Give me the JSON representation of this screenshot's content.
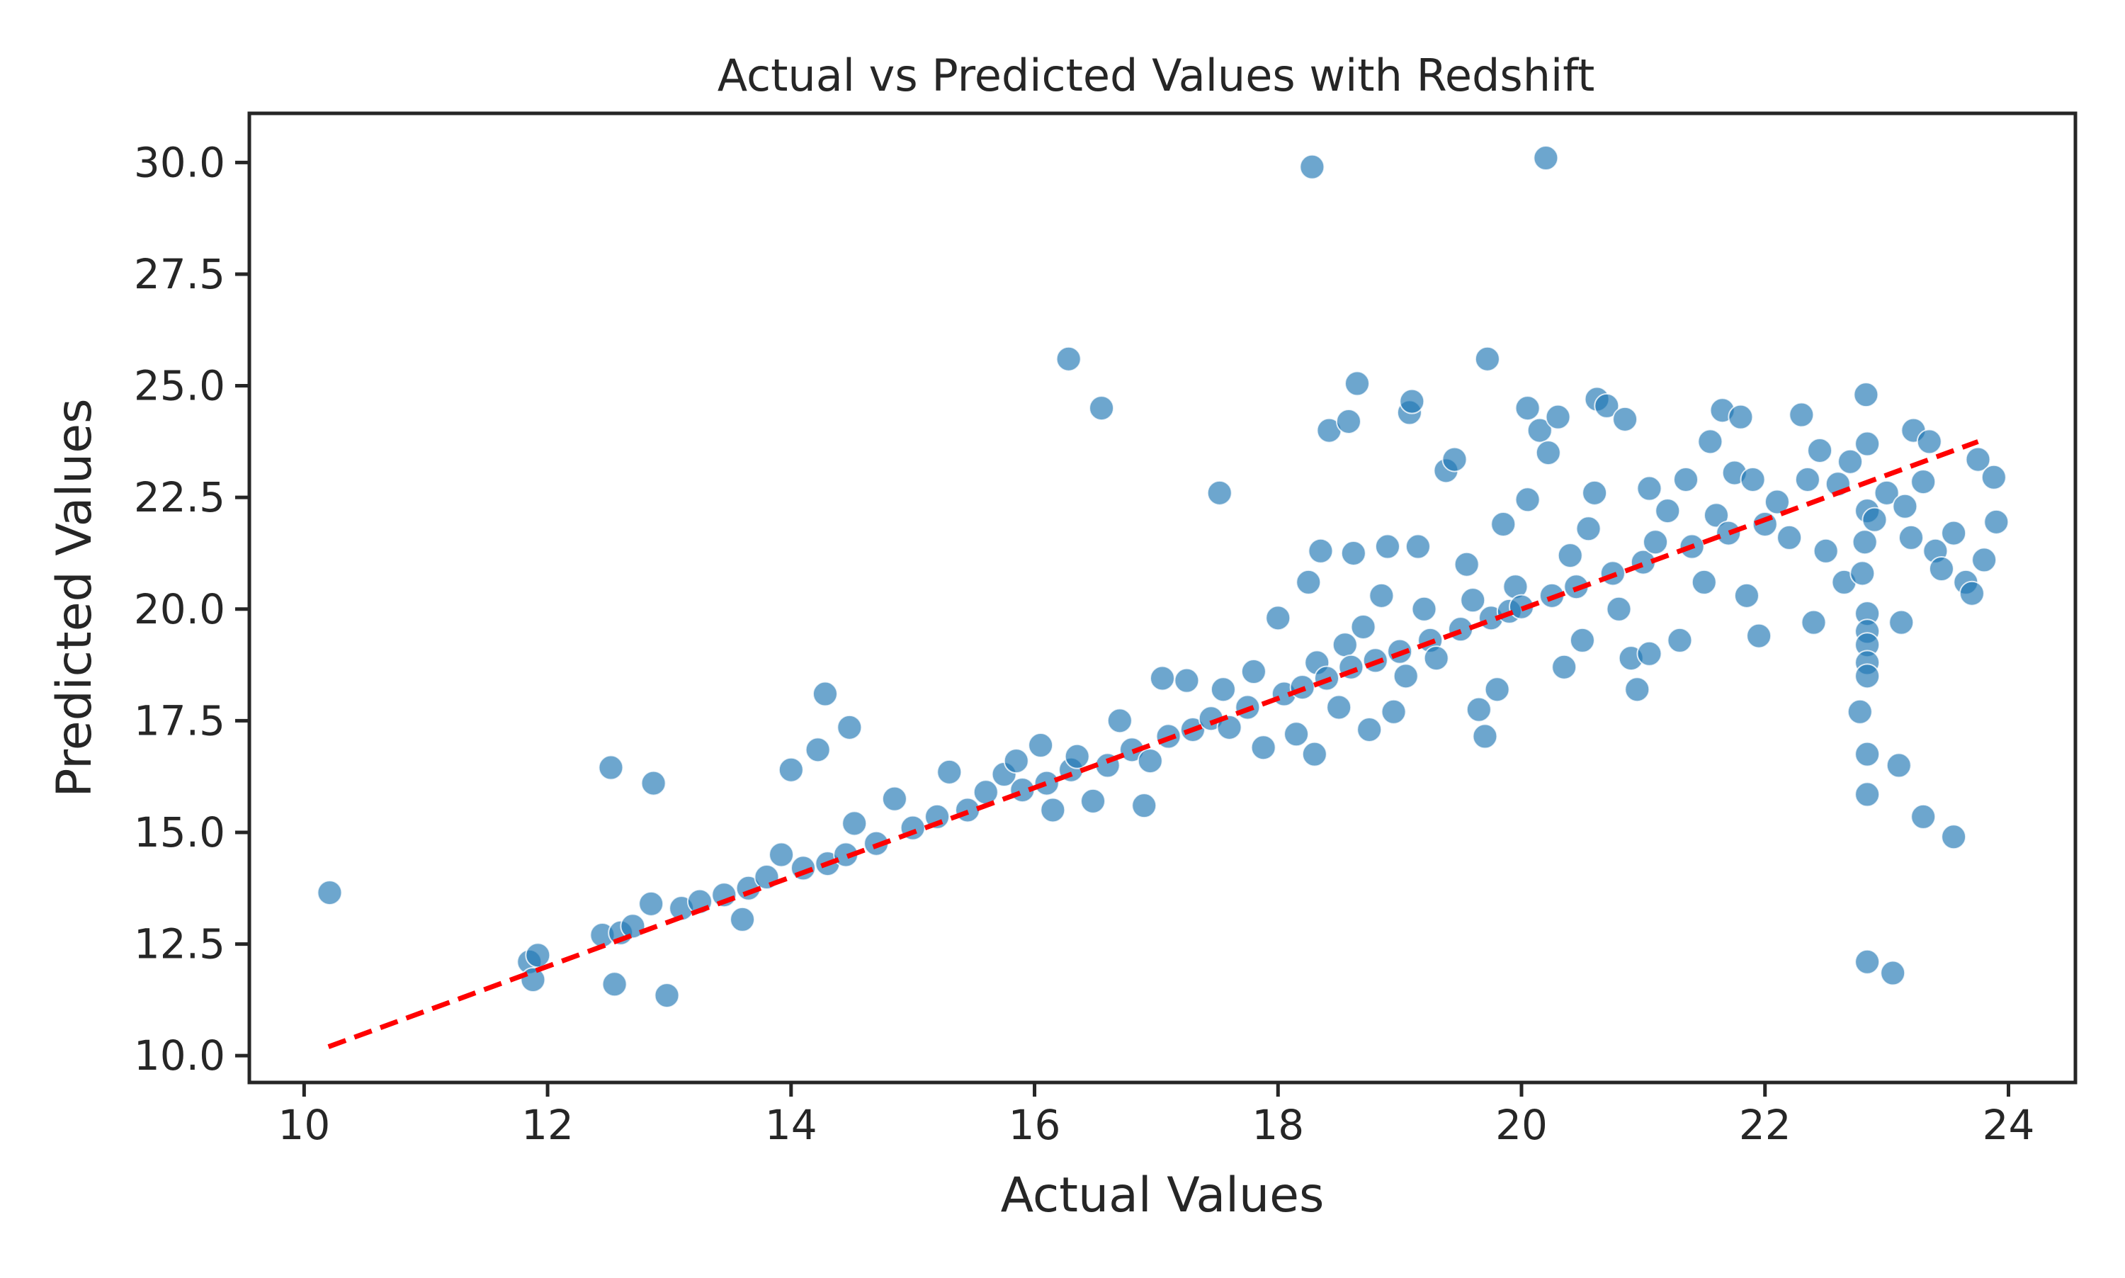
{
  "chart_data": {
    "type": "scatter",
    "title": "Actual vs Predicted Values with Redshift",
    "xlabel": "Actual Values",
    "ylabel": "Predicted Values",
    "xlim": [
      9.55,
      24.55
    ],
    "ylim": [
      9.4,
      31.1
    ],
    "xticks": [
      10,
      12,
      14,
      16,
      18,
      20,
      22,
      24
    ],
    "xtick_labels": [
      "10",
      "12",
      "14",
      "16",
      "18",
      "20",
      "22",
      "24"
    ],
    "yticks": [
      10.0,
      12.5,
      15.0,
      17.5,
      20.0,
      22.5,
      25.0,
      27.5,
      30.0
    ],
    "ytick_labels": [
      "10.0",
      "12.5",
      "15.0",
      "17.5",
      "20.0",
      "22.5",
      "25.0",
      "27.5",
      "30.0"
    ],
    "grid": false,
    "colors": {
      "points": "#1f77b4",
      "point_edge": "#ffffff",
      "reference_line": "#ff0000",
      "axes": "#262626"
    },
    "reference_line": {
      "style": "dashed",
      "x": [
        10.2,
        23.75
      ],
      "y": [
        10.2,
        23.75
      ]
    },
    "series": [
      {
        "points": [
          [
            10.21,
            13.65
          ],
          [
            11.85,
            12.1
          ],
          [
            11.88,
            11.7
          ],
          [
            11.92,
            12.25
          ],
          [
            12.45,
            12.7
          ],
          [
            12.52,
            16.45
          ],
          [
            12.55,
            11.6
          ],
          [
            12.6,
            12.75
          ],
          [
            12.7,
            12.9
          ],
          [
            12.85,
            13.4
          ],
          [
            12.87,
            16.1
          ],
          [
            12.98,
            11.35
          ],
          [
            13.1,
            13.3
          ],
          [
            13.25,
            13.45
          ],
          [
            13.45,
            13.6
          ],
          [
            13.6,
            13.05
          ],
          [
            13.65,
            13.75
          ],
          [
            13.8,
            14.0
          ],
          [
            13.92,
            14.5
          ],
          [
            14.0,
            16.4
          ],
          [
            14.1,
            14.2
          ],
          [
            14.22,
            16.85
          ],
          [
            14.28,
            18.1
          ],
          [
            14.3,
            14.3
          ],
          [
            14.45,
            14.5
          ],
          [
            14.48,
            17.35
          ],
          [
            14.52,
            15.2
          ],
          [
            14.7,
            14.75
          ],
          [
            14.85,
            15.75
          ],
          [
            15.0,
            15.1
          ],
          [
            15.2,
            15.35
          ],
          [
            15.3,
            16.35
          ],
          [
            15.45,
            15.5
          ],
          [
            15.6,
            15.9
          ],
          [
            15.75,
            16.3
          ],
          [
            15.85,
            16.6
          ],
          [
            15.9,
            15.95
          ],
          [
            16.05,
            16.95
          ],
          [
            16.1,
            16.1
          ],
          [
            16.15,
            15.5
          ],
          [
            16.28,
            25.6
          ],
          [
            16.3,
            16.4
          ],
          [
            16.35,
            16.7
          ],
          [
            16.48,
            15.7
          ],
          [
            16.55,
            24.5
          ],
          [
            16.6,
            16.5
          ],
          [
            16.7,
            17.5
          ],
          [
            16.8,
            16.85
          ],
          [
            16.9,
            15.6
          ],
          [
            16.95,
            16.6
          ],
          [
            17.05,
            18.45
          ],
          [
            17.1,
            17.15
          ],
          [
            17.25,
            18.4
          ],
          [
            17.3,
            17.3
          ],
          [
            17.45,
            17.55
          ],
          [
            17.52,
            22.6
          ],
          [
            17.55,
            18.2
          ],
          [
            17.6,
            17.35
          ],
          [
            17.75,
            17.8
          ],
          [
            17.8,
            18.6
          ],
          [
            17.88,
            16.9
          ],
          [
            18.0,
            19.8
          ],
          [
            18.05,
            18.1
          ],
          [
            18.15,
            17.2
          ],
          [
            18.2,
            18.25
          ],
          [
            18.25,
            20.6
          ],
          [
            18.28,
            29.9
          ],
          [
            18.3,
            16.75
          ],
          [
            18.32,
            18.8
          ],
          [
            18.35,
            21.3
          ],
          [
            18.4,
            18.45
          ],
          [
            18.42,
            24.0
          ],
          [
            18.5,
            17.8
          ],
          [
            18.55,
            19.2
          ],
          [
            18.58,
            24.2
          ],
          [
            18.6,
            18.7
          ],
          [
            18.62,
            21.25
          ],
          [
            18.65,
            25.05
          ],
          [
            18.7,
            19.6
          ],
          [
            18.75,
            17.3
          ],
          [
            18.8,
            18.85
          ],
          [
            18.85,
            20.3
          ],
          [
            18.9,
            21.4
          ],
          [
            18.95,
            17.7
          ],
          [
            19.0,
            19.05
          ],
          [
            19.05,
            18.5
          ],
          [
            19.08,
            24.4
          ],
          [
            19.1,
            24.65
          ],
          [
            19.15,
            21.4
          ],
          [
            19.2,
            20.0
          ],
          [
            19.25,
            19.3
          ],
          [
            19.3,
            18.9
          ],
          [
            19.38,
            23.1
          ],
          [
            19.45,
            23.35
          ],
          [
            19.5,
            19.55
          ],
          [
            19.55,
            21.0
          ],
          [
            19.6,
            20.2
          ],
          [
            19.65,
            17.75
          ],
          [
            19.7,
            17.15
          ],
          [
            19.72,
            25.6
          ],
          [
            19.75,
            19.8
          ],
          [
            19.8,
            18.2
          ],
          [
            19.85,
            21.9
          ],
          [
            19.9,
            19.95
          ],
          [
            19.95,
            20.5
          ],
          [
            20.0,
            20.05
          ],
          [
            20.05,
            22.45
          ],
          [
            20.05,
            24.5
          ],
          [
            20.15,
            24.0
          ],
          [
            20.2,
            30.1
          ],
          [
            20.22,
            23.5
          ],
          [
            20.25,
            20.3
          ],
          [
            20.3,
            24.3
          ],
          [
            20.35,
            18.7
          ],
          [
            20.4,
            21.2
          ],
          [
            20.45,
            20.5
          ],
          [
            20.5,
            19.3
          ],
          [
            20.55,
            21.8
          ],
          [
            20.6,
            22.6
          ],
          [
            20.62,
            24.7
          ],
          [
            20.7,
            24.55
          ],
          [
            20.75,
            20.8
          ],
          [
            20.8,
            20.0
          ],
          [
            20.85,
            24.25
          ],
          [
            20.9,
            18.9
          ],
          [
            20.95,
            18.2
          ],
          [
            21.0,
            21.05
          ],
          [
            21.05,
            22.7
          ],
          [
            21.05,
            19.0
          ],
          [
            21.1,
            21.5
          ],
          [
            21.2,
            22.2
          ],
          [
            21.3,
            19.3
          ],
          [
            21.35,
            22.9
          ],
          [
            21.4,
            21.4
          ],
          [
            21.5,
            20.6
          ],
          [
            21.55,
            23.75
          ],
          [
            21.6,
            22.1
          ],
          [
            21.65,
            24.45
          ],
          [
            21.7,
            21.7
          ],
          [
            21.75,
            23.05
          ],
          [
            21.8,
            24.3
          ],
          [
            21.85,
            20.3
          ],
          [
            21.9,
            22.9
          ],
          [
            21.95,
            19.4
          ],
          [
            22.0,
            21.9
          ],
          [
            22.1,
            22.4
          ],
          [
            22.2,
            21.6
          ],
          [
            22.3,
            24.35
          ],
          [
            22.35,
            22.9
          ],
          [
            22.4,
            19.7
          ],
          [
            22.45,
            23.55
          ],
          [
            22.5,
            21.3
          ],
          [
            22.6,
            22.8
          ],
          [
            22.65,
            20.6
          ],
          [
            22.7,
            23.3
          ],
          [
            22.78,
            17.7
          ],
          [
            22.8,
            20.8
          ],
          [
            22.82,
            21.5
          ],
          [
            22.83,
            24.8
          ],
          [
            22.84,
            23.7
          ],
          [
            22.84,
            22.2
          ],
          [
            22.84,
            19.9
          ],
          [
            22.84,
            19.5
          ],
          [
            22.84,
            19.2
          ],
          [
            22.84,
            18.8
          ],
          [
            22.84,
            18.5
          ],
          [
            22.84,
            16.75
          ],
          [
            22.84,
            15.85
          ],
          [
            22.84,
            12.1
          ],
          [
            22.9,
            22.0
          ],
          [
            23.0,
            22.6
          ],
          [
            23.05,
            11.85
          ],
          [
            23.1,
            16.5
          ],
          [
            23.12,
            19.7
          ],
          [
            23.15,
            22.3
          ],
          [
            23.2,
            21.6
          ],
          [
            23.22,
            24.0
          ],
          [
            23.3,
            15.35
          ],
          [
            23.3,
            22.85
          ],
          [
            23.35,
            23.75
          ],
          [
            23.4,
            21.3
          ],
          [
            23.45,
            20.9
          ],
          [
            23.55,
            14.9
          ],
          [
            23.55,
            21.7
          ],
          [
            23.65,
            20.6
          ],
          [
            23.7,
            20.35
          ],
          [
            23.75,
            23.35
          ],
          [
            23.8,
            21.1
          ],
          [
            23.88,
            22.95
          ],
          [
            23.9,
            21.95
          ]
        ]
      }
    ]
  }
}
